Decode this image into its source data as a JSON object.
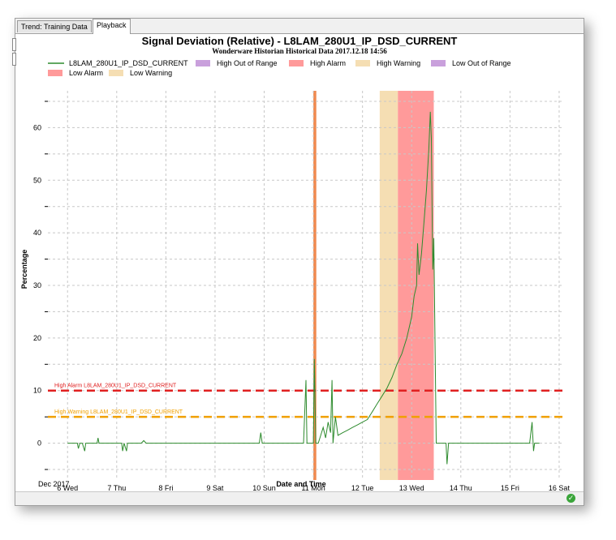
{
  "tabs": [
    {
      "label": "Trend: Training Data",
      "active": false
    },
    {
      "label": "Playback",
      "active": true
    }
  ],
  "chart_data": {
    "type": "line",
    "title": "Signal Deviation (Relative) - L8LAM_280U1_IP_DSD_CURRENT",
    "subtitle": "Wonderware Historian Historical Data 2017.12.18 14:56",
    "xlabel": "Date and Time",
    "ylabel": "Percentage",
    "x_sublabel": "Dec 2017",
    "xlim": [
      5.6,
      16.1
    ],
    "ylim": [
      -7,
      67
    ],
    "x_ticks": [
      {
        "x": 6,
        "label": "6 Wed"
      },
      {
        "x": 7,
        "label": "7 Thu"
      },
      {
        "x": 8,
        "label": "8 Fri"
      },
      {
        "x": 9,
        "label": "9 Sat"
      },
      {
        "x": 10,
        "label": "10 Sun"
      },
      {
        "x": 11,
        "label": "11 Mon"
      },
      {
        "x": 12,
        "label": "12 Tue"
      },
      {
        "x": 13,
        "label": "13 Wed"
      },
      {
        "x": 14,
        "label": "14 Thu"
      },
      {
        "x": 15,
        "label": "15 Fri"
      },
      {
        "x": 16,
        "label": "16 Sat"
      }
    ],
    "y_ticks": [
      0,
      10,
      20,
      30,
      40,
      50,
      60
    ],
    "grid": true,
    "legend": [
      {
        "label": "L8LAM_280U1_IP_DSD_CURRENT",
        "kind": "line",
        "color": "#2e8b2e"
      },
      {
        "label": "High Out of Range",
        "kind": "box",
        "color": "#c9a0dc"
      },
      {
        "label": "High Alarm",
        "kind": "box",
        "color": "#ff9a9a"
      },
      {
        "label": "High Warning",
        "kind": "box",
        "color": "#f5deb3"
      },
      {
        "label": "Low Out of Range",
        "kind": "box",
        "color": "#c9a0dc"
      },
      {
        "label": "Low Alarm",
        "kind": "box",
        "color": "#ff9a9a"
      },
      {
        "label": "Low Warning",
        "kind": "box",
        "color": "#f5deb3"
      }
    ],
    "limits": [
      {
        "name": "High Alarm L8LAM_280U1_IP_DSD_CURRENT",
        "y": 10,
        "color": "#e02020"
      },
      {
        "name": "High Warning L8LAM_280U1_IP_DSD_CURRENT",
        "y": 5,
        "color": "#f0a000"
      }
    ],
    "bands": [
      {
        "name": "High Warning",
        "x0": 12.35,
        "x1": 12.72,
        "color": "#f5deb3"
      },
      {
        "name": "High Alarm",
        "x0": 12.72,
        "x1": 13.45,
        "color": "#ff9a9a"
      },
      {
        "name": "High Alarm",
        "x0": 11.0,
        "x1": 11.06,
        "color": "#f08a50"
      }
    ],
    "series": [
      {
        "name": "L8LAM_280U1_IP_DSD_CURRENT",
        "color": "#2e8b2e",
        "x": [
          6.0,
          6.2,
          6.22,
          6.25,
          6.3,
          6.35,
          6.37,
          6.4,
          6.5,
          6.6,
          6.62,
          6.64,
          6.7,
          6.9,
          7.0,
          7.1,
          7.12,
          7.15,
          7.2,
          7.22,
          7.3,
          7.5,
          7.55,
          7.6,
          7.7,
          8.0,
          9.0,
          9.5,
          9.9,
          9.93,
          9.96,
          10.0,
          10.5,
          10.8,
          10.85,
          10.87,
          10.9,
          10.95,
          11.0,
          11.02,
          11.05,
          11.08,
          11.1,
          11.15,
          11.2,
          11.25,
          11.3,
          11.35,
          11.38,
          11.4,
          11.45,
          11.5,
          11.6,
          11.7,
          11.8,
          11.9,
          12.0,
          12.1,
          12.2,
          12.3,
          12.4,
          12.5,
          12.6,
          12.7,
          12.8,
          12.9,
          13.0,
          13.05,
          13.1,
          13.12,
          13.15,
          13.2,
          13.25,
          13.3,
          13.35,
          13.38,
          13.4,
          13.42,
          13.43,
          13.44,
          13.45,
          13.5,
          13.7,
          13.72,
          13.75,
          14.0,
          15.0,
          15.4,
          15.45,
          15.48,
          15.5,
          15.55,
          15.6
        ],
        "values": [
          0,
          0,
          -1,
          0,
          0,
          -1.5,
          0,
          0,
          0,
          0,
          1,
          0,
          0,
          0,
          0,
          0,
          -1.5,
          0,
          -1.5,
          0,
          0,
          0,
          0.5,
          0,
          0,
          0,
          0,
          0,
          0,
          2,
          0,
          0,
          0,
          0,
          12,
          0,
          0,
          0,
          0,
          16,
          0,
          0,
          0,
          1.5,
          3,
          1,
          4,
          2,
          12,
          0,
          5,
          1.5,
          2,
          2.5,
          3,
          3.5,
          4,
          4.5,
          6,
          7.5,
          9,
          10.5,
          12.5,
          15,
          17,
          20,
          24,
          28,
          30,
          38,
          32,
          36,
          42,
          48,
          56,
          63,
          58,
          40,
          33,
          35,
          39,
          0,
          0,
          -4,
          0,
          0,
          0,
          0,
          4,
          -1.5,
          0,
          0,
          0
        ]
      }
    ]
  }
}
